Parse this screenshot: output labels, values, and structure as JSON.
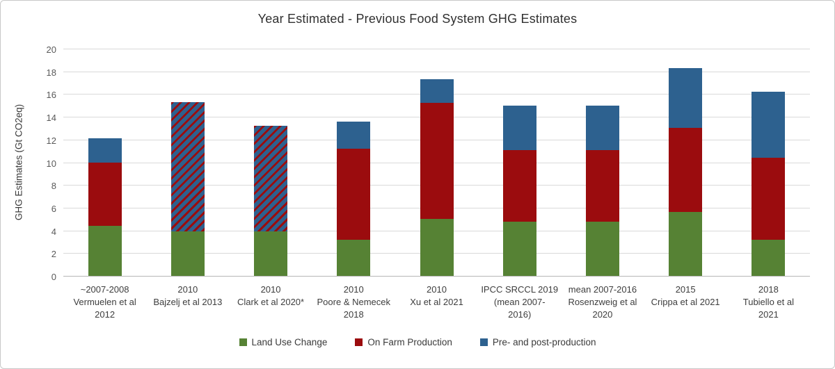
{
  "chart_data": {
    "type": "bar",
    "variant": "stacked",
    "title": "Year Estimated - Previous Food System GHG Estimates",
    "ylabel": "GHG Estimates (Gt CO2eq)",
    "ylim": [
      0,
      20
    ],
    "yticks": [
      0,
      2,
      4,
      6,
      8,
      10,
      12,
      14,
      16,
      18,
      20
    ],
    "grid": "horizontal",
    "legend_position": "bottom",
    "colors": {
      "land_use_change": "#568234",
      "on_farm_production": "#9b0c0e",
      "pre_post_production": "#2d618f",
      "gridline": "#d9d9d9",
      "axis_line": "#b7b7b7"
    },
    "series": [
      {
        "key": "land_use_change",
        "label": "Land Use Change",
        "color": "#568234"
      },
      {
        "key": "on_farm_production",
        "label": "On Farm Production",
        "color": "#9b0c0e"
      },
      {
        "key": "pre_post_production",
        "label": "Pre- and post-production",
        "color": "#2d618f"
      }
    ],
    "hatched_segment_meaning": "red/blue diagonal stripes: on-farm and pre/post-production not separated",
    "bars": [
      {
        "label": "~2007-2008\nVermuelen et al\n2012",
        "segments": [
          {
            "series": "land_use_change",
            "value": 4.4
          },
          {
            "series": "on_farm_production",
            "value": 5.6
          },
          {
            "series": "pre_post_production",
            "value": 2.1
          }
        ],
        "total": 12.1
      },
      {
        "label": "2010\nBajzelj et al 2013",
        "segments": [
          {
            "series": "land_use_change",
            "value": 3.9
          },
          {
            "series": "on_farm_production",
            "value": 11.4,
            "style": "hatched"
          }
        ],
        "total": 15.3
      },
      {
        "label": "2010\nClark et al 2020*",
        "segments": [
          {
            "series": "land_use_change",
            "value": 3.9
          },
          {
            "series": "on_farm_production",
            "value": 9.3,
            "style": "hatched"
          }
        ],
        "total": 13.2
      },
      {
        "label": "2010\nPoore & Nemecek\n2018",
        "segments": [
          {
            "series": "land_use_change",
            "value": 3.2
          },
          {
            "series": "on_farm_production",
            "value": 8.0
          },
          {
            "series": "pre_post_production",
            "value": 2.4
          }
        ],
        "total": 13.6
      },
      {
        "label": "2010\nXu et al 2021",
        "segments": [
          {
            "series": "land_use_change",
            "value": 5.0
          },
          {
            "series": "on_farm_production",
            "value": 10.2
          },
          {
            "series": "pre_post_production",
            "value": 2.1
          }
        ],
        "total": 17.3
      },
      {
        "label": "IPCC SRCCL 2019\n(mean 2007-\n2016)",
        "segments": [
          {
            "series": "land_use_change",
            "value": 4.8
          },
          {
            "series": "on_farm_production",
            "value": 6.3
          },
          {
            "series": "pre_post_production",
            "value": 3.9
          }
        ],
        "total": 15.0
      },
      {
        "label": "mean 2007-2016\nRosenzweig et al\n2020",
        "segments": [
          {
            "series": "land_use_change",
            "value": 4.8
          },
          {
            "series": "on_farm_production",
            "value": 6.3
          },
          {
            "series": "pre_post_production",
            "value": 3.9
          }
        ],
        "total": 15.0
      },
      {
        "label": "2015\nCrippa et al 2021",
        "segments": [
          {
            "series": "land_use_change",
            "value": 5.6
          },
          {
            "series": "on_farm_production",
            "value": 7.4
          },
          {
            "series": "pre_post_production",
            "value": 5.3
          }
        ],
        "total": 18.3
      },
      {
        "label": "2018\nTubiello et al\n2021",
        "segments": [
          {
            "series": "land_use_change",
            "value": 3.2
          },
          {
            "series": "on_farm_production",
            "value": 7.2
          },
          {
            "series": "pre_post_production",
            "value": 5.8
          }
        ],
        "total": 16.2
      }
    ]
  }
}
